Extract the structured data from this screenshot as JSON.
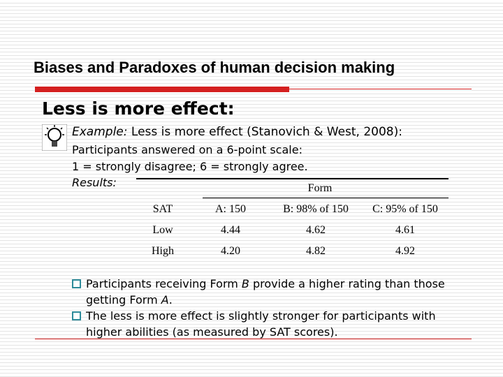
{
  "header": {
    "title": "Biases and Paradoxes of human decision making"
  },
  "heading": "Less is more effect:",
  "example": {
    "label": "Example:",
    "text": "Less is more effect (Stanovich & West, 2008):"
  },
  "lines": [
    "Participants answered on a 6-point scale:",
    "1 = strongly disagree; 6 = strongly agree."
  ],
  "results_label": "Results:",
  "table": {
    "group_header": "Form",
    "columns": [
      "SAT",
      "A: 150",
      "B: 98% of 150",
      "C: 95% of 150"
    ],
    "rows": [
      [
        "Low",
        "4.44",
        "4.62",
        "4.61"
      ],
      [
        "High",
        "4.20",
        "4.82",
        "4.92"
      ]
    ]
  },
  "bullets": [
    {
      "parts": [
        "Participants receiving Form ",
        "B",
        " provide a higher rating than those getting Form ",
        "A",
        "."
      ]
    },
    {
      "parts": [
        "The less is more effect is slightly stronger for participants with higher abilities (as measured by SAT scores)."
      ]
    }
  ]
}
